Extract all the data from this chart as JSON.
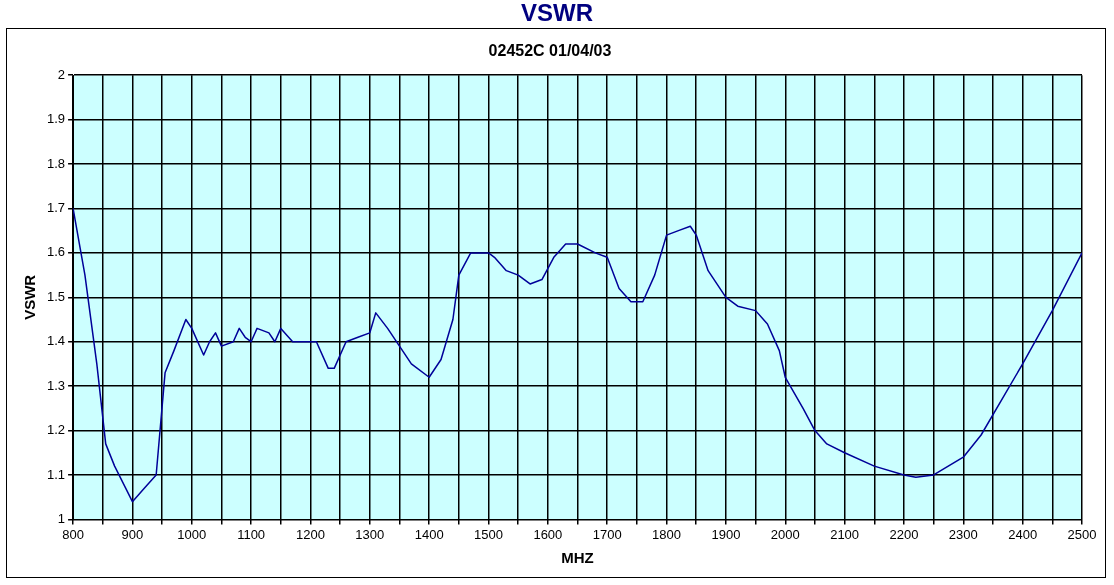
{
  "chart_data": {
    "type": "line",
    "title": "VSWR",
    "subtitle": "02452C 01/04/03",
    "xlabel": "MHZ",
    "ylabel": "VSWR",
    "grid": true,
    "legend": false,
    "marker": "none",
    "line_style": "solid",
    "xlim": [
      800,
      2500
    ],
    "ylim": [
      1,
      2
    ],
    "xticks": [
      800,
      {
        "value": 850,
        "label": null
      },
      900,
      {
        "value": 950,
        "label": null
      },
      1000,
      {
        "value": 1050,
        "label": null
      },
      1100,
      {
        "value": 1150,
        "label": null
      },
      1200,
      {
        "value": 1250,
        "label": null
      },
      1300,
      {
        "value": 1350,
        "label": null
      },
      1400,
      {
        "value": 1450,
        "label": null
      },
      1500,
      {
        "value": 1550,
        "label": null
      },
      1600,
      {
        "value": 1650,
        "label": null
      },
      1700,
      {
        "value": 1750,
        "label": null
      },
      1800,
      {
        "value": 1850,
        "label": null
      },
      1900,
      {
        "value": 1950,
        "label": null
      },
      2000,
      {
        "value": 2050,
        "label": null
      },
      2100,
      {
        "value": 2150,
        "label": null
      },
      2200,
      {
        "value": 2250,
        "label": null
      },
      2300,
      {
        "value": 2350,
        "label": null
      },
      2400,
      {
        "value": 2450,
        "label": null
      },
      2500
    ],
    "yticks": [
      1,
      1.1,
      1.2,
      1.3,
      1.4,
      1.5,
      1.6,
      1.7,
      1.8,
      1.9,
      2
    ],
    "series": [
      {
        "color": "#000099",
        "x": [
          800,
          820,
          840,
          855,
          870,
          900,
          920,
          940,
          955,
          970,
          990,
          1000,
          1020,
          1030,
          1040,
          1050,
          1070,
          1080,
          1090,
          1100,
          1110,
          1130,
          1140,
          1150,
          1170,
          1200,
          1210,
          1230,
          1240,
          1260,
          1280,
          1300,
          1310,
          1330,
          1350,
          1370,
          1400,
          1420,
          1440,
          1450,
          1470,
          1500,
          1510,
          1530,
          1550,
          1570,
          1590,
          1610,
          1630,
          1650,
          1680,
          1700,
          1720,
          1740,
          1760,
          1780,
          1800,
          1820,
          1840,
          1850,
          1870,
          1900,
          1920,
          1950,
          1970,
          1990,
          2000,
          2030,
          2050,
          2070,
          2100,
          2150,
          2200,
          2220,
          2250,
          2300,
          2330,
          2400,
          2450,
          2500
        ],
        "values": [
          1.7,
          1.55,
          1.35,
          1.17,
          1.12,
          1.04,
          1.07,
          1.1,
          1.33,
          1.38,
          1.45,
          1.43,
          1.37,
          1.4,
          1.42,
          1.39,
          1.4,
          1.43,
          1.41,
          1.4,
          1.43,
          1.42,
          1.4,
          1.43,
          1.4,
          1.4,
          1.4,
          1.34,
          1.34,
          1.4,
          1.41,
          1.42,
          1.465,
          1.43,
          1.39,
          1.35,
          1.32,
          1.36,
          1.45,
          1.55,
          1.6,
          1.6,
          1.59,
          1.56,
          1.55,
          1.53,
          1.54,
          1.59,
          1.62,
          1.62,
          1.6,
          1.59,
          1.52,
          1.49,
          1.49,
          1.55,
          1.64,
          1.65,
          1.66,
          1.64,
          1.56,
          1.5,
          1.48,
          1.47,
          1.44,
          1.38,
          1.32,
          1.25,
          1.2,
          1.17,
          1.15,
          1.12,
          1.1,
          1.095,
          1.1,
          1.14,
          1.19,
          1.35,
          1.47,
          1.6
        ]
      }
    ]
  }
}
